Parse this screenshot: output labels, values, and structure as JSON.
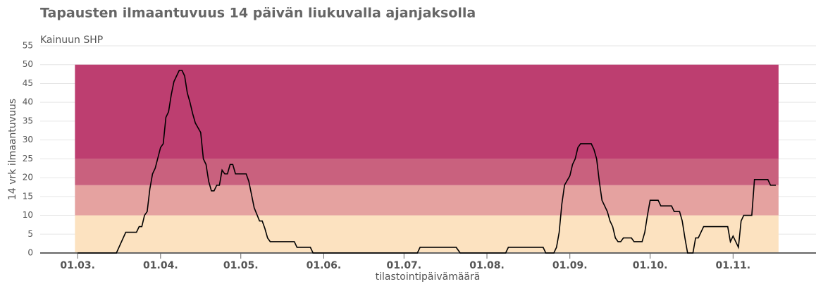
{
  "chart_data": {
    "type": "line",
    "title": "Tapausten ilmaantuvuus 14 päivän liukuvalla ajanjaksolla",
    "subtitle": "Kainuun SHP",
    "ylabel": "14 vrk ilmaantuvuus",
    "xlabel": "tilastointipäivämäärä",
    "xlim": [
      -14,
      276
    ],
    "ylim": [
      0,
      55
    ],
    "yticks": [
      0,
      5,
      10,
      15,
      20,
      25,
      30,
      35,
      40,
      45,
      50,
      55
    ],
    "xticks": [
      {
        "value": 0,
        "label": "01.03."
      },
      {
        "value": 31,
        "label": "01.04."
      },
      {
        "value": 61,
        "label": "01.05."
      },
      {
        "value": 92,
        "label": "01.06."
      },
      {
        "value": 122,
        "label": "01.07."
      },
      {
        "value": 153,
        "label": "01.08."
      },
      {
        "value": 184,
        "label": "01.09."
      },
      {
        "value": 214,
        "label": "01.10."
      },
      {
        "value": 245,
        "label": "01.11."
      }
    ],
    "grid": true,
    "bands": [
      {
        "from": 0,
        "to": 10,
        "color": "#fce2c0"
      },
      {
        "from": 10,
        "to": 18,
        "color": "#e5a2a0"
      },
      {
        "from": 18,
        "to": 25,
        "color": "#c9617e"
      },
      {
        "from": 25,
        "to": 50,
        "color": "#bd3e70"
      }
    ],
    "band_xlim": [
      -1,
      262
    ],
    "series": [
      {
        "color": "#000000",
        "x": [
          0,
          14.5,
          18,
          22,
          23,
          24,
          25,
          26,
          27,
          28,
          29,
          31,
          32,
          33,
          34,
          35,
          36,
          37,
          38,
          39,
          40,
          41,
          42,
          43,
          44,
          46,
          47,
          48,
          49,
          50,
          51,
          52,
          53,
          54,
          55,
          56,
          57,
          58,
          59,
          63,
          64,
          65,
          66,
          68,
          69,
          70,
          71,
          72,
          81,
          82,
          87,
          88,
          127,
          128,
          141.5,
          143,
          160,
          161,
          174,
          175,
          178,
          179,
          180,
          181,
          182,
          184,
          185,
          186,
          187,
          188,
          192,
          193,
          194,
          195,
          196,
          198,
          199,
          200,
          201,
          202,
          203,
          204,
          207,
          208,
          211,
          212,
          213,
          214,
          217,
          218,
          222,
          223,
          225,
          226,
          227,
          228,
          230,
          231,
          232,
          234,
          243,
          244,
          245,
          247,
          248,
          249,
          252,
          253,
          258,
          259,
          261
        ],
        "values": [
          0,
          0,
          5.5,
          5.5,
          7,
          7,
          10,
          11,
          17,
          21,
          22.5,
          28,
          29,
          36,
          37.5,
          42,
          45.5,
          47,
          48.5,
          48.5,
          47,
          42.5,
          40,
          37,
          34.5,
          32,
          25,
          23.5,
          19,
          16.5,
          16.5,
          18,
          18,
          22,
          21,
          21,
          23.5,
          23.5,
          21,
          21,
          19,
          15.5,
          12,
          8.5,
          8.5,
          6.5,
          4,
          3,
          3,
          1.5,
          1.5,
          0,
          0,
          1.5,
          1.5,
          0,
          0,
          1.5,
          1.5,
          0,
          0,
          1.5,
          5.5,
          13,
          18,
          20.5,
          23.5,
          25,
          28,
          29,
          29,
          27.5,
          25,
          19,
          14,
          11,
          8.5,
          7,
          4,
          3,
          3,
          4,
          4,
          3,
          3,
          5.5,
          10,
          14,
          14,
          12.5,
          12.5,
          11,
          11,
          8.5,
          4,
          0,
          0,
          4,
          4,
          7,
          7,
          3,
          4.5,
          1.5,
          8.5,
          10,
          10,
          19.5,
          19.5,
          18,
          18
        ]
      }
    ]
  }
}
